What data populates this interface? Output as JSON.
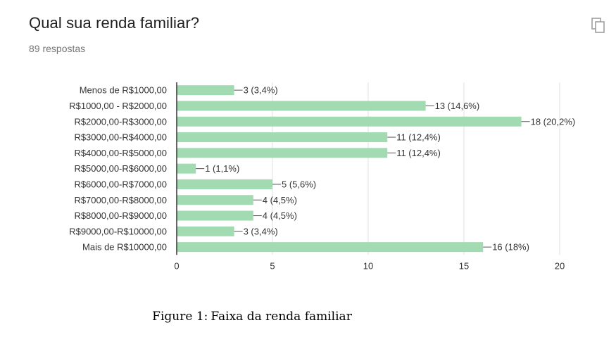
{
  "header": {
    "question": "Qual sua renda familiar?",
    "responses": "89 respostas"
  },
  "icons": {
    "copy": "copy-icon"
  },
  "chart_data": {
    "type": "bar",
    "orientation": "horizontal",
    "categories": [
      "Menos de R$1000,00",
      "R$1000,00 - R$2000,00",
      "R$2000,00-R$3000,00",
      "R$3000,00-R$4000,00",
      "R$4000,00-R$5000,00",
      "R$5000,00-R$6000,00",
      "R$6000,00-R$7000,00",
      "R$7000,00-R$8000,00",
      "R$8000,00-R$9000,00",
      "R$9000,00-R$10000,00",
      "Mais de R$10000,00"
    ],
    "values": [
      3,
      13,
      18,
      11,
      11,
      1,
      5,
      4,
      4,
      3,
      16
    ],
    "data_labels": [
      "3 (3,4%)",
      "13 (14,6%)",
      "18 (20,2%)",
      "11 (12,4%)",
      "11 (12,4%)",
      "1 (1,1%)",
      "5 (5,6%)",
      "4 (4,5%)",
      "4 (4,5%)",
      "3 (3,4%)",
      "16 (18%)"
    ],
    "xlim": [
      0,
      20
    ],
    "xticks": [
      0,
      5,
      10,
      15,
      20
    ],
    "grid": true,
    "bar_color": "#a2dbb1",
    "grid_color": "#e0e0e0"
  },
  "figure": {
    "label": "Figure 1:",
    "caption": "Faixa da renda familiar"
  }
}
